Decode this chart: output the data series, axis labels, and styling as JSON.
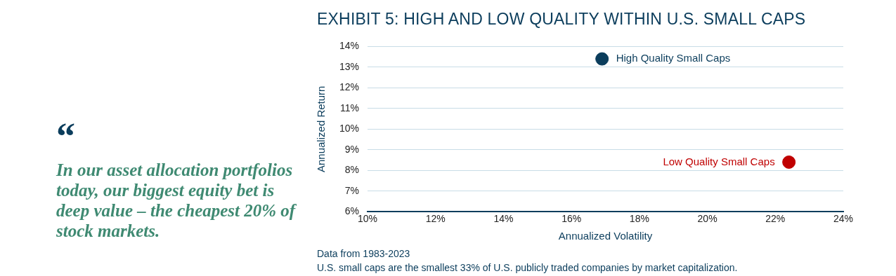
{
  "chart_data": {
    "type": "scatter",
    "title": "EXHIBIT 5: HIGH AND LOW QUALITY WITHIN U.S. SMALL CAPS",
    "xlabel": "Annualized Volatility",
    "ylabel": "Annualized Return",
    "annotations": [
      "“",
      "In our asset allocation portfolios today, our biggest equity bet is deep value – the cheapest 20% of stock markets.",
      "Data from 1983-2023",
      "U.S. small caps are the smallest 33% of U.S. publicly traded companies by market capitalization."
    ],
    "series": [
      {
        "name": "High Quality Small Caps",
        "color": "#0b3d5c",
        "x": [
          16.9
        ],
        "values": [
          13.4
        ]
      },
      {
        "name": "Low Quality Small Caps",
        "color": "#c00000",
        "x": [
          22.4
        ],
        "values": [
          8.4
        ]
      }
    ],
    "xlim": [
      10,
      24
    ],
    "xticks": [
      {
        "value": 10,
        "label": "10%"
      },
      {
        "value": 12,
        "label": "12%"
      },
      {
        "value": 14,
        "label": "14%"
      },
      {
        "value": 16,
        "label": "16%"
      },
      {
        "value": 18,
        "label": "18%"
      },
      {
        "value": 20,
        "label": "20%"
      },
      {
        "value": 22,
        "label": "22%"
      },
      {
        "value": 24,
        "label": "24%"
      }
    ],
    "ylim": [
      6,
      14
    ],
    "yticks": [
      {
        "value": 6,
        "label": "6%"
      },
      {
        "value": 7,
        "label": "7%"
      },
      {
        "value": 8,
        "label": "8%"
      },
      {
        "value": 9,
        "label": "9%"
      },
      {
        "value": 10,
        "label": "10%"
      },
      {
        "value": 11,
        "label": "11%"
      },
      {
        "value": 12,
        "label": "12%"
      },
      {
        "value": 13,
        "label": "13%"
      },
      {
        "value": 14,
        "label": "14%"
      }
    ],
    "grid": "y",
    "marker": "circle"
  }
}
